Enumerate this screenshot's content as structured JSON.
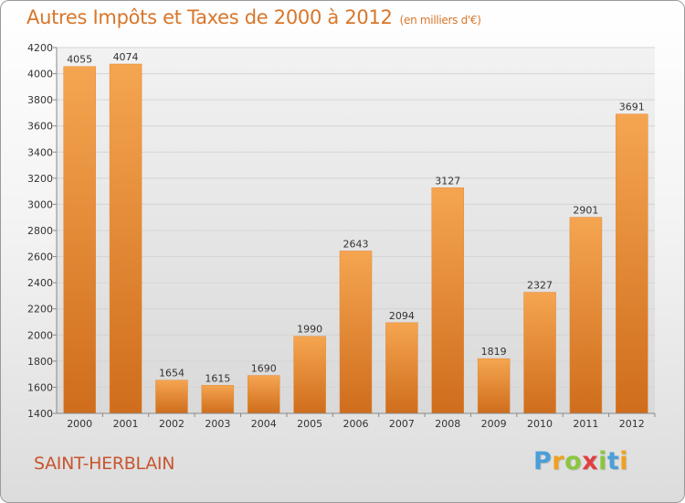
{
  "title": {
    "main": "Autres Impôts et Taxes de 2000 à 2012",
    "unit": "(en milliers d'€)"
  },
  "location": "SAINT-HERBLAIN",
  "logo": {
    "letters": [
      {
        "ch": "P",
        "color": "#4a9fd8"
      },
      {
        "ch": "r",
        "color": "#f0a020"
      },
      {
        "ch": "o",
        "color": "#8cc63f"
      },
      {
        "ch": "x",
        "color": "#e04040"
      },
      {
        "ch": "i",
        "color": "#8cc63f"
      },
      {
        "ch": "t",
        "color": "#4a9fd8"
      },
      {
        "ch": "i",
        "color": "#f0a020"
      }
    ]
  },
  "colors": {
    "bar_light": "#f5a550",
    "bar_dark": "#cf6d1c",
    "title": "#d8762a",
    "grid": "#d4d4d4"
  },
  "chart_data": {
    "type": "bar",
    "categories": [
      "2000",
      "2001",
      "2002",
      "2003",
      "2004",
      "2005",
      "2006",
      "2007",
      "2008",
      "2009",
      "2010",
      "2011",
      "2012"
    ],
    "values": [
      4055,
      4074,
      1654,
      1615,
      1690,
      1990,
      2643,
      2094,
      3127,
      1819,
      2327,
      2901,
      3691
    ],
    "title": "Autres Impôts et Taxes de 2000 à 2012",
    "xlabel": "",
    "ylabel": "",
    "ylim": [
      1400,
      4200
    ],
    "yticks": [
      1400,
      1600,
      1800,
      2000,
      2200,
      2400,
      2600,
      2800,
      3000,
      3200,
      3400,
      3600,
      3800,
      4000,
      4200
    ],
    "grid": true,
    "legend": "none"
  }
}
